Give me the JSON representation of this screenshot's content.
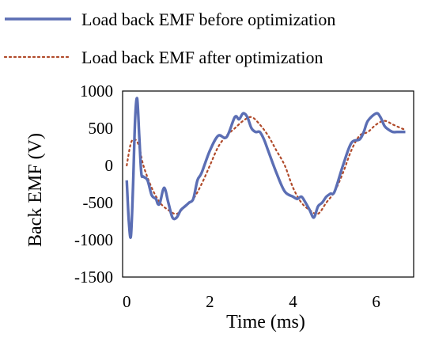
{
  "chart_data": {
    "type": "line",
    "title": "",
    "xlabel": "Time (ms)",
    "ylabel": "Back EMF (V)",
    "xlim": [
      -0.1,
      6.9
    ],
    "ylim": [
      -1500,
      1000
    ],
    "xticks": [
      0,
      2,
      4,
      6
    ],
    "yticks": [
      1000,
      500,
      0,
      -500,
      -1000,
      -1500
    ],
    "grid": false,
    "legend_position": "top",
    "series": [
      {
        "name": "Load back EMF before optimization",
        "color": "#5b6eb4",
        "style": "solid",
        "x": [
          0.0,
          0.05,
          0.1,
          0.15,
          0.2,
          0.25,
          0.3,
          0.35,
          0.4,
          0.5,
          0.6,
          0.7,
          0.75,
          0.8,
          0.9,
          1.0,
          1.1,
          1.2,
          1.3,
          1.4,
          1.5,
          1.6,
          1.7,
          1.8,
          2.0,
          2.2,
          2.4,
          2.6,
          2.7,
          2.8,
          2.9,
          3.0,
          3.1,
          3.2,
          3.3,
          3.4,
          3.6,
          3.8,
          4.0,
          4.1,
          4.2,
          4.3,
          4.4,
          4.5,
          4.6,
          4.7,
          4.8,
          4.9,
          5.0,
          5.2,
          5.4,
          5.6,
          5.7,
          5.8,
          6.0,
          6.1,
          6.2,
          6.3,
          6.4,
          6.5,
          6.6,
          6.7
        ],
        "y": [
          -200,
          -750,
          -950,
          -300,
          600,
          900,
          400,
          -100,
          -150,
          -200,
          -400,
          -450,
          -520,
          -500,
          -300,
          -500,
          -700,
          -700,
          -600,
          -550,
          -500,
          -450,
          -200,
          -100,
          200,
          400,
          380,
          650,
          620,
          700,
          650,
          500,
          450,
          450,
          350,
          200,
          -100,
          -350,
          -420,
          -450,
          -420,
          -500,
          -600,
          -700,
          -550,
          -500,
          -420,
          -380,
          -350,
          0,
          300,
          350,
          450,
          600,
          700,
          650,
          530,
          480,
          450,
          450,
          450,
          450
        ]
      },
      {
        "name": "Load back EMF after optimization",
        "color": "#b04a2a",
        "style": "dotted",
        "x": [
          0.0,
          0.1,
          0.2,
          0.3,
          0.4,
          0.6,
          0.8,
          1.0,
          1.2,
          1.4,
          1.6,
          1.8,
          2.0,
          2.2,
          2.4,
          2.6,
          2.8,
          3.0,
          3.2,
          3.4,
          3.6,
          3.8,
          4.0,
          4.2,
          4.4,
          4.6,
          4.8,
          5.0,
          5.2,
          5.4,
          5.6,
          5.8,
          6.0,
          6.2,
          6.4,
          6.6,
          6.7
        ],
        "y": [
          0,
          300,
          350,
          250,
          0,
          -300,
          -500,
          -600,
          -650,
          -550,
          -450,
          -250,
          0,
          250,
          400,
          500,
          600,
          650,
          550,
          400,
          200,
          0,
          -300,
          -500,
          -600,
          -650,
          -500,
          -350,
          -100,
          200,
          400,
          450,
          550,
          600,
          550,
          500,
          480
        ]
      }
    ]
  }
}
